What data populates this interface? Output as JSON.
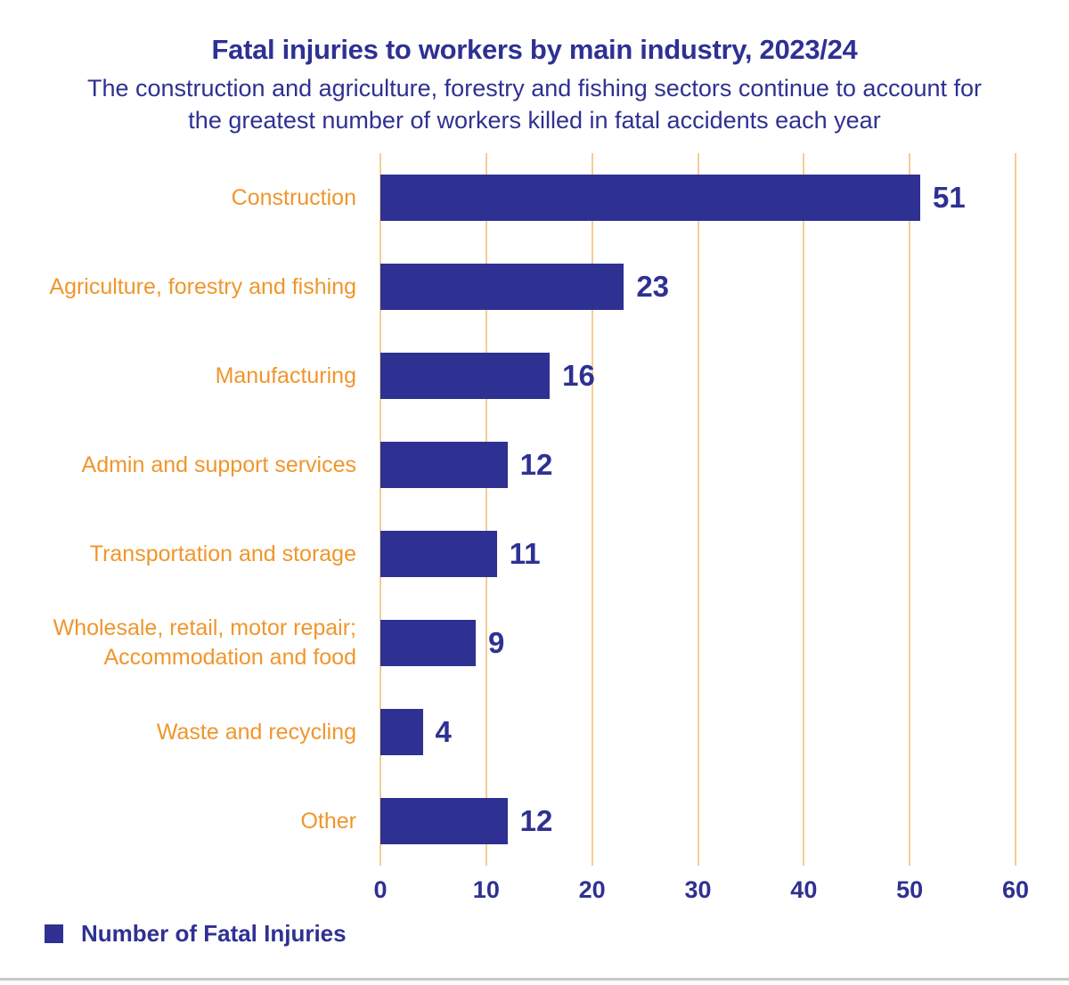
{
  "chart_data": {
    "type": "bar",
    "orientation": "horizontal",
    "title": "Fatal injuries to workers by main industry, 2023/24",
    "subtitle": "The construction and agriculture, forestry and fishing sectors continue to account for the greatest number of workers killed in fatal accidents each year",
    "categories": [
      "Construction",
      "Agriculture, forestry and fishing",
      "Manufacturing",
      "Admin and support services",
      "Transportation and storage",
      "Wholesale, retail, motor repair; Accommodation and food",
      "Waste and recycling",
      "Other"
    ],
    "values": [
      51,
      23,
      16,
      12,
      11,
      9,
      4,
      12
    ],
    "xlabel": "",
    "ylabel": "",
    "xlim": [
      0,
      60
    ],
    "x_ticks": [
      "0",
      "10",
      "20",
      "30",
      "40",
      "50",
      "60"
    ],
    "grid": "vertical-on",
    "legend": {
      "position": "bottom-left",
      "label": "Number of Fatal Injuries",
      "swatch_icon": "navy-square"
    },
    "colors": {
      "bar": "#2E3192",
      "category_label": "#F0962C",
      "value_label": "#2E3192",
      "tick_label": "#2E3192",
      "title": "#2E3192",
      "subtitle": "#2E3192",
      "gridline": "#F2CE94",
      "bottom_rule": "#C8C8C8"
    }
  }
}
